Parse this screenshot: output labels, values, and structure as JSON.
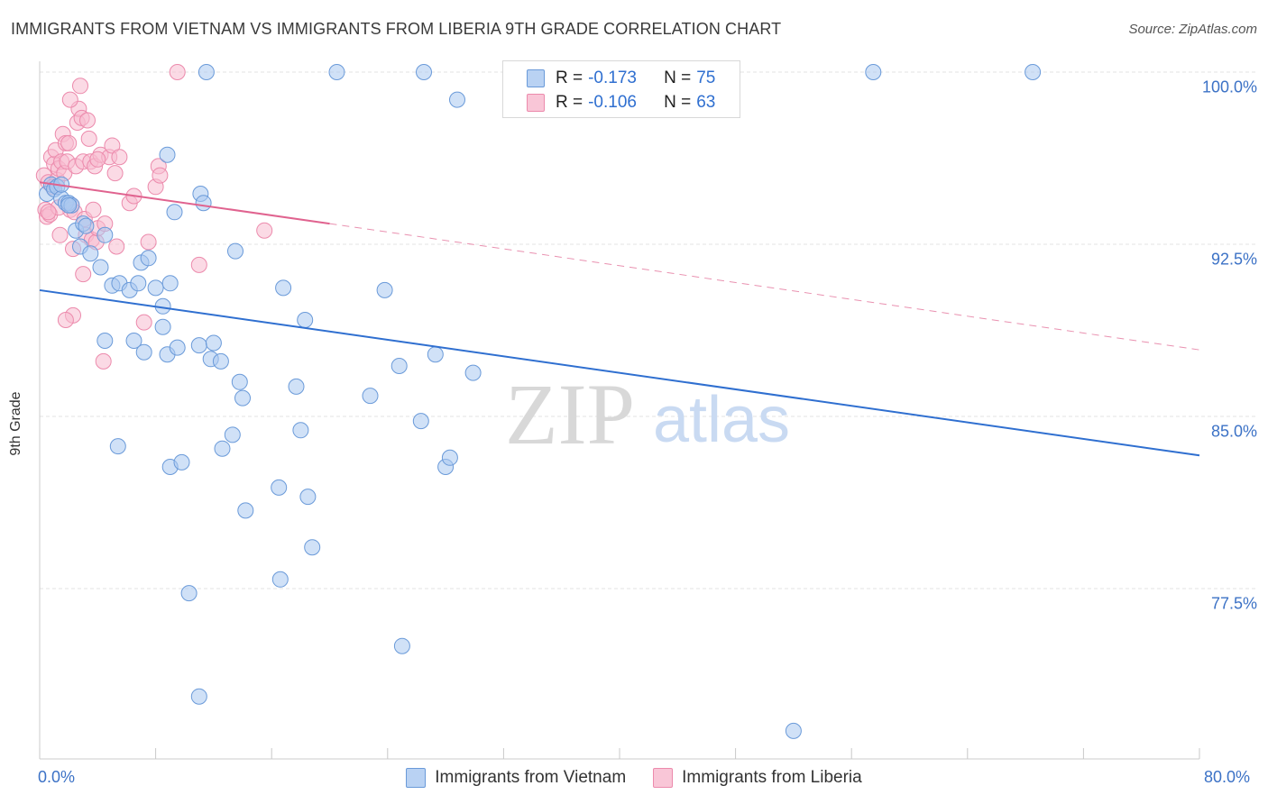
{
  "chart_data": {
    "type": "scatter",
    "title": "IMMIGRANTS FROM VIETNAM VS IMMIGRANTS FROM LIBERIA 9TH GRADE CORRELATION CHART",
    "source": "Source: ZipAtlas.com",
    "ylabel": "9th Grade",
    "xlim": [
      0,
      80
    ],
    "ylim": [
      71,
      101
    ],
    "x_tick_labels": [
      "0.0%",
      "80.0%"
    ],
    "y_ticks": [
      {
        "value": 100.0,
        "label": "100.0%"
      },
      {
        "value": 92.5,
        "label": "92.5%"
      },
      {
        "value": 85.0,
        "label": "85.0%"
      },
      {
        "value": 77.5,
        "label": "77.5%"
      }
    ],
    "watermark": {
      "zip": "ZIP",
      "atlas": "atlas"
    },
    "legend": [
      {
        "name": "Vietnam",
        "r_label": "R =",
        "r_value": "-0.173",
        "n_label": "N =",
        "n_value": "75"
      },
      {
        "name": "Liberia",
        "r_label": "R =",
        "r_value": "-0.106",
        "n_label": "N =",
        "n_value": "63"
      }
    ],
    "series": [
      {
        "name": "Immigrants from Vietnam",
        "fill": "#a9c8f0",
        "stroke": "#6a9ad9",
        "line_color": "#2f6fd0",
        "trend": {
          "x0": 0,
          "y0": 90.5,
          "x1": 80,
          "y1": 83.3
        },
        "points": [
          [
            0.5,
            94.7
          ],
          [
            0.8,
            95.1
          ],
          [
            1.0,
            94.9
          ],
          [
            1.2,
            95.0
          ],
          [
            1.5,
            94.5
          ],
          [
            1.8,
            94.3
          ],
          [
            2.0,
            94.3
          ],
          [
            2.2,
            94.2
          ],
          [
            2.5,
            93.1
          ],
          [
            3.0,
            93.4
          ],
          [
            2.8,
            92.4
          ],
          [
            3.2,
            93.3
          ],
          [
            3.5,
            92.1
          ],
          [
            4.5,
            92.9
          ],
          [
            4.2,
            91.5
          ],
          [
            5.0,
            90.7
          ],
          [
            5.5,
            90.8
          ],
          [
            6.2,
            90.5
          ],
          [
            7.0,
            91.7
          ],
          [
            6.8,
            90.8
          ],
          [
            7.5,
            91.9
          ],
          [
            8.0,
            90.6
          ],
          [
            8.5,
            89.8
          ],
          [
            9.0,
            90.8
          ],
          [
            6.5,
            88.3
          ],
          [
            4.5,
            88.3
          ],
          [
            7.2,
            87.8
          ],
          [
            8.8,
            87.7
          ],
          [
            9.5,
            88.0
          ],
          [
            11.0,
            88.1
          ],
          [
            12.0,
            88.2
          ],
          [
            11.8,
            87.5
          ],
          [
            12.5,
            87.4
          ],
          [
            8.5,
            88.9
          ],
          [
            9.3,
            93.9
          ],
          [
            8.8,
            96.4
          ],
          [
            11.1,
            94.7
          ],
          [
            11.3,
            94.3
          ],
          [
            13.5,
            92.2
          ],
          [
            16.8,
            90.6
          ],
          [
            18.3,
            89.2
          ],
          [
            23.8,
            90.5
          ],
          [
            13.8,
            86.5
          ],
          [
            14.0,
            85.8
          ],
          [
            17.7,
            86.3
          ],
          [
            22.8,
            85.9
          ],
          [
            24.8,
            87.2
          ],
          [
            27.3,
            87.7
          ],
          [
            29.9,
            86.9
          ],
          [
            12.6,
            83.6
          ],
          [
            13.3,
            84.2
          ],
          [
            18.0,
            84.4
          ],
          [
            26.3,
            84.8
          ],
          [
            28.0,
            82.8
          ],
          [
            28.3,
            83.2
          ],
          [
            5.4,
            83.7
          ],
          [
            9.0,
            82.8
          ],
          [
            9.8,
            83.0
          ],
          [
            16.5,
            81.9
          ],
          [
            18.5,
            81.5
          ],
          [
            14.2,
            80.9
          ],
          [
            18.8,
            79.3
          ],
          [
            16.6,
            77.9
          ],
          [
            10.3,
            77.3
          ],
          [
            25.0,
            75.0
          ],
          [
            11.0,
            72.8
          ],
          [
            52.0,
            71.3
          ],
          [
            11.5,
            100.0
          ],
          [
            20.5,
            100.0
          ],
          [
            26.5,
            100.0
          ],
          [
            57.5,
            100.0
          ],
          [
            68.5,
            100.0
          ],
          [
            28.8,
            98.8
          ],
          [
            2.0,
            94.2
          ],
          [
            1.5,
            95.1
          ]
        ]
      },
      {
        "name": "Immigrants from Liberia",
        "fill": "#f8bcd0",
        "stroke": "#ec8aac",
        "line_color": "#e0638f",
        "trend": {
          "x0": 0,
          "y0": 95.2,
          "x1": 20,
          "y1": 93.4
        },
        "trend_dashed": {
          "x0": 20,
          "y0": 93.4,
          "x1": 80,
          "y1": 87.9
        },
        "points": [
          [
            0.3,
            95.5
          ],
          [
            0.4,
            94.0
          ],
          [
            0.5,
            93.7
          ],
          [
            0.6,
            95.2
          ],
          [
            0.7,
            93.8
          ],
          [
            0.8,
            96.3
          ],
          [
            1.0,
            96.0
          ],
          [
            1.1,
            96.6
          ],
          [
            1.2,
            95.3
          ],
          [
            1.3,
            95.8
          ],
          [
            1.4,
            92.9
          ],
          [
            1.5,
            96.1
          ],
          [
            1.6,
            97.3
          ],
          [
            1.7,
            95.6
          ],
          [
            1.8,
            96.9
          ],
          [
            1.9,
            96.1
          ],
          [
            2.0,
            96.9
          ],
          [
            2.1,
            94.0
          ],
          [
            2.2,
            94.2
          ],
          [
            2.3,
            92.3
          ],
          [
            2.4,
            93.9
          ],
          [
            2.5,
            95.9
          ],
          [
            2.6,
            97.8
          ],
          [
            2.7,
            98.4
          ],
          [
            2.8,
            99.4
          ],
          [
            2.9,
            98.0
          ],
          [
            3.0,
            96.1
          ],
          [
            3.1,
            93.6
          ],
          [
            3.2,
            92.9
          ],
          [
            3.3,
            97.9
          ],
          [
            3.4,
            97.1
          ],
          [
            3.5,
            96.1
          ],
          [
            3.6,
            92.7
          ],
          [
            3.7,
            94.0
          ],
          [
            3.8,
            95.9
          ],
          [
            3.9,
            92.6
          ],
          [
            4.0,
            93.2
          ],
          [
            4.2,
            96.4
          ],
          [
            4.5,
            93.4
          ],
          [
            4.8,
            96.3
          ],
          [
            5.0,
            96.8
          ],
          [
            5.2,
            95.6
          ],
          [
            5.3,
            92.4
          ],
          [
            5.5,
            96.3
          ],
          [
            6.2,
            94.3
          ],
          [
            6.5,
            94.6
          ],
          [
            7.5,
            92.6
          ],
          [
            8.0,
            95.0
          ],
          [
            8.2,
            95.9
          ],
          [
            8.3,
            95.5
          ],
          [
            11.0,
            91.6
          ],
          [
            15.5,
            93.1
          ],
          [
            2.1,
            98.8
          ],
          [
            2.3,
            89.4
          ],
          [
            1.8,
            89.2
          ],
          [
            3.0,
            91.2
          ],
          [
            4.4,
            87.4
          ],
          [
            7.2,
            89.1
          ],
          [
            9.5,
            100.0
          ],
          [
            1.3,
            94.1
          ],
          [
            0.9,
            95.0
          ],
          [
            4.0,
            96.2
          ],
          [
            0.6,
            93.9
          ]
        ]
      }
    ]
  },
  "bottom_legend": [
    "Immigrants from Vietnam",
    "Immigrants from Liberia"
  ]
}
